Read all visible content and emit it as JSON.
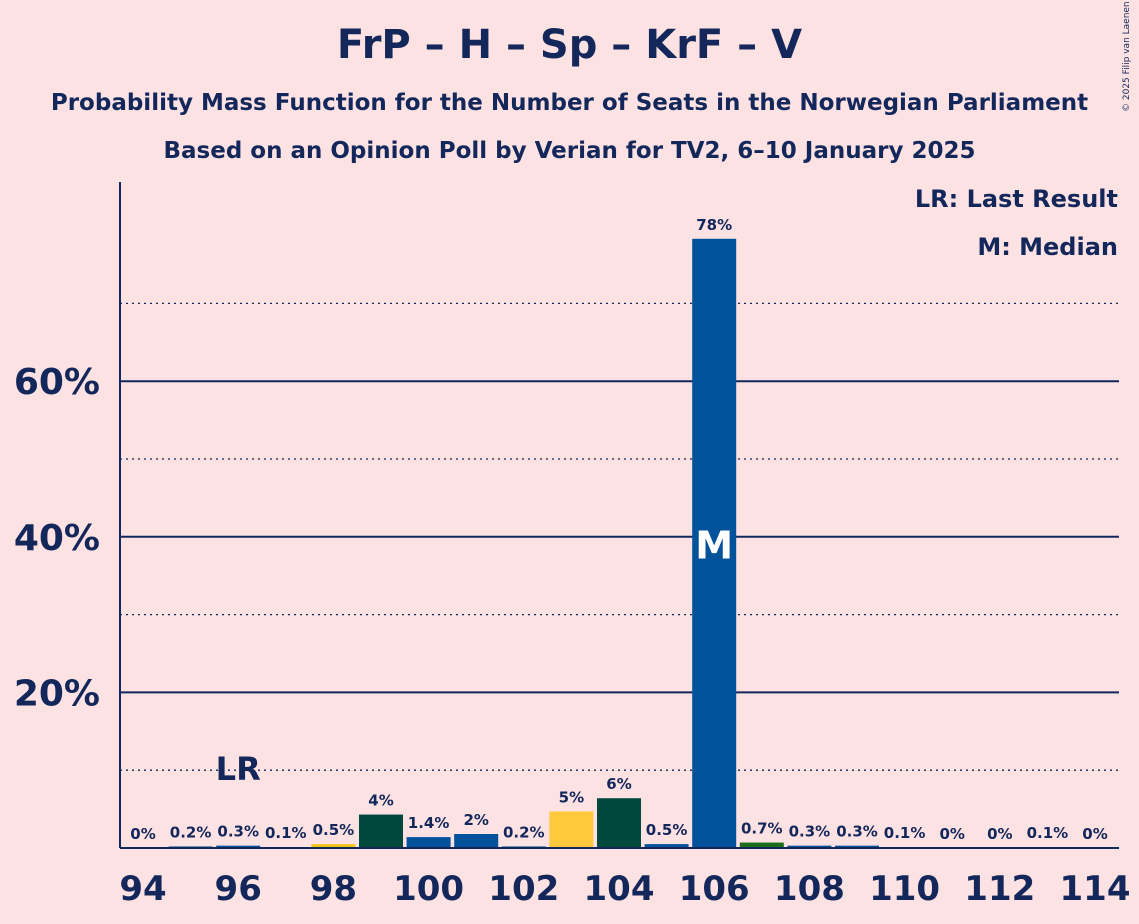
{
  "chart_data": {
    "type": "bar",
    "title": "FrP – H – Sp – KrF – V",
    "subtitle_1": "Probability Mass Function for the Number of Seats in the Norwegian Parliament",
    "subtitle_2": "Based on an Opinion Poll by Verian for TV2, 6–10 January 2025",
    "copyright": "© 2025 Filip van Laenen",
    "legend": {
      "last_result": "LR: Last Result",
      "median": "M: Median"
    },
    "xlabel": "",
    "ylabel": "",
    "ylim": [
      0,
      86
    ],
    "y_major_ticks": [
      20,
      40,
      60
    ],
    "y_tick_labels": [
      "20%",
      "40%",
      "60%"
    ],
    "y_minor_ticks": [
      10,
      30,
      50,
      70
    ],
    "x_tick_seats": [
      94,
      96,
      98,
      100,
      102,
      104,
      106,
      108,
      110,
      112,
      114
    ],
    "x_tick_labels": [
      "94",
      "96",
      "98",
      "100",
      "102",
      "104",
      "106",
      "108",
      "110",
      "112",
      "114"
    ],
    "seats": [
      94,
      95,
      96,
      97,
      98,
      99,
      100,
      101,
      102,
      103,
      104,
      105,
      106,
      107,
      108,
      109,
      110,
      111,
      112,
      113,
      114
    ],
    "values": [
      0,
      0.2,
      0.3,
      0.1,
      0.5,
      4.3,
      1.4,
      1.8,
      0.2,
      4.7,
      6.4,
      0.5,
      78.3,
      0.7,
      0.3,
      0.3,
      0.1,
      0,
      0,
      0.1,
      0
    ],
    "data_labels": [
      "0%",
      "0.2%",
      "0.3%",
      "0.1%",
      "0.5%",
      "4%",
      "1.4%",
      "2%",
      "0.2%",
      "5%",
      "6%",
      "0.5%",
      "78%",
      "0.7%",
      "0.3%",
      "0.3%",
      "0.1%",
      "0%",
      "0%",
      "0.1%",
      "0%"
    ],
    "bar_colors": [
      "#00529B",
      "#00529B",
      "#00529B",
      "#00529B",
      "#F5C518",
      "#00473C",
      "#00529B",
      "#00529B",
      "#00529B",
      "#FFC83D",
      "#00473C",
      "#00529B",
      "#00529B",
      "#1A6C1A",
      "#00529B",
      "#00529B",
      "#00529B",
      "#00529B",
      "#00529B",
      "#00529B",
      "#00529B"
    ],
    "last_result_seat": 96,
    "last_result_label": "LR",
    "median_seat": 106,
    "median_label": "M"
  },
  "colors": {
    "background": "#FDE2E4",
    "text": "#13275B",
    "axis": "#13275B",
    "median_text": "#FFFFFF"
  }
}
